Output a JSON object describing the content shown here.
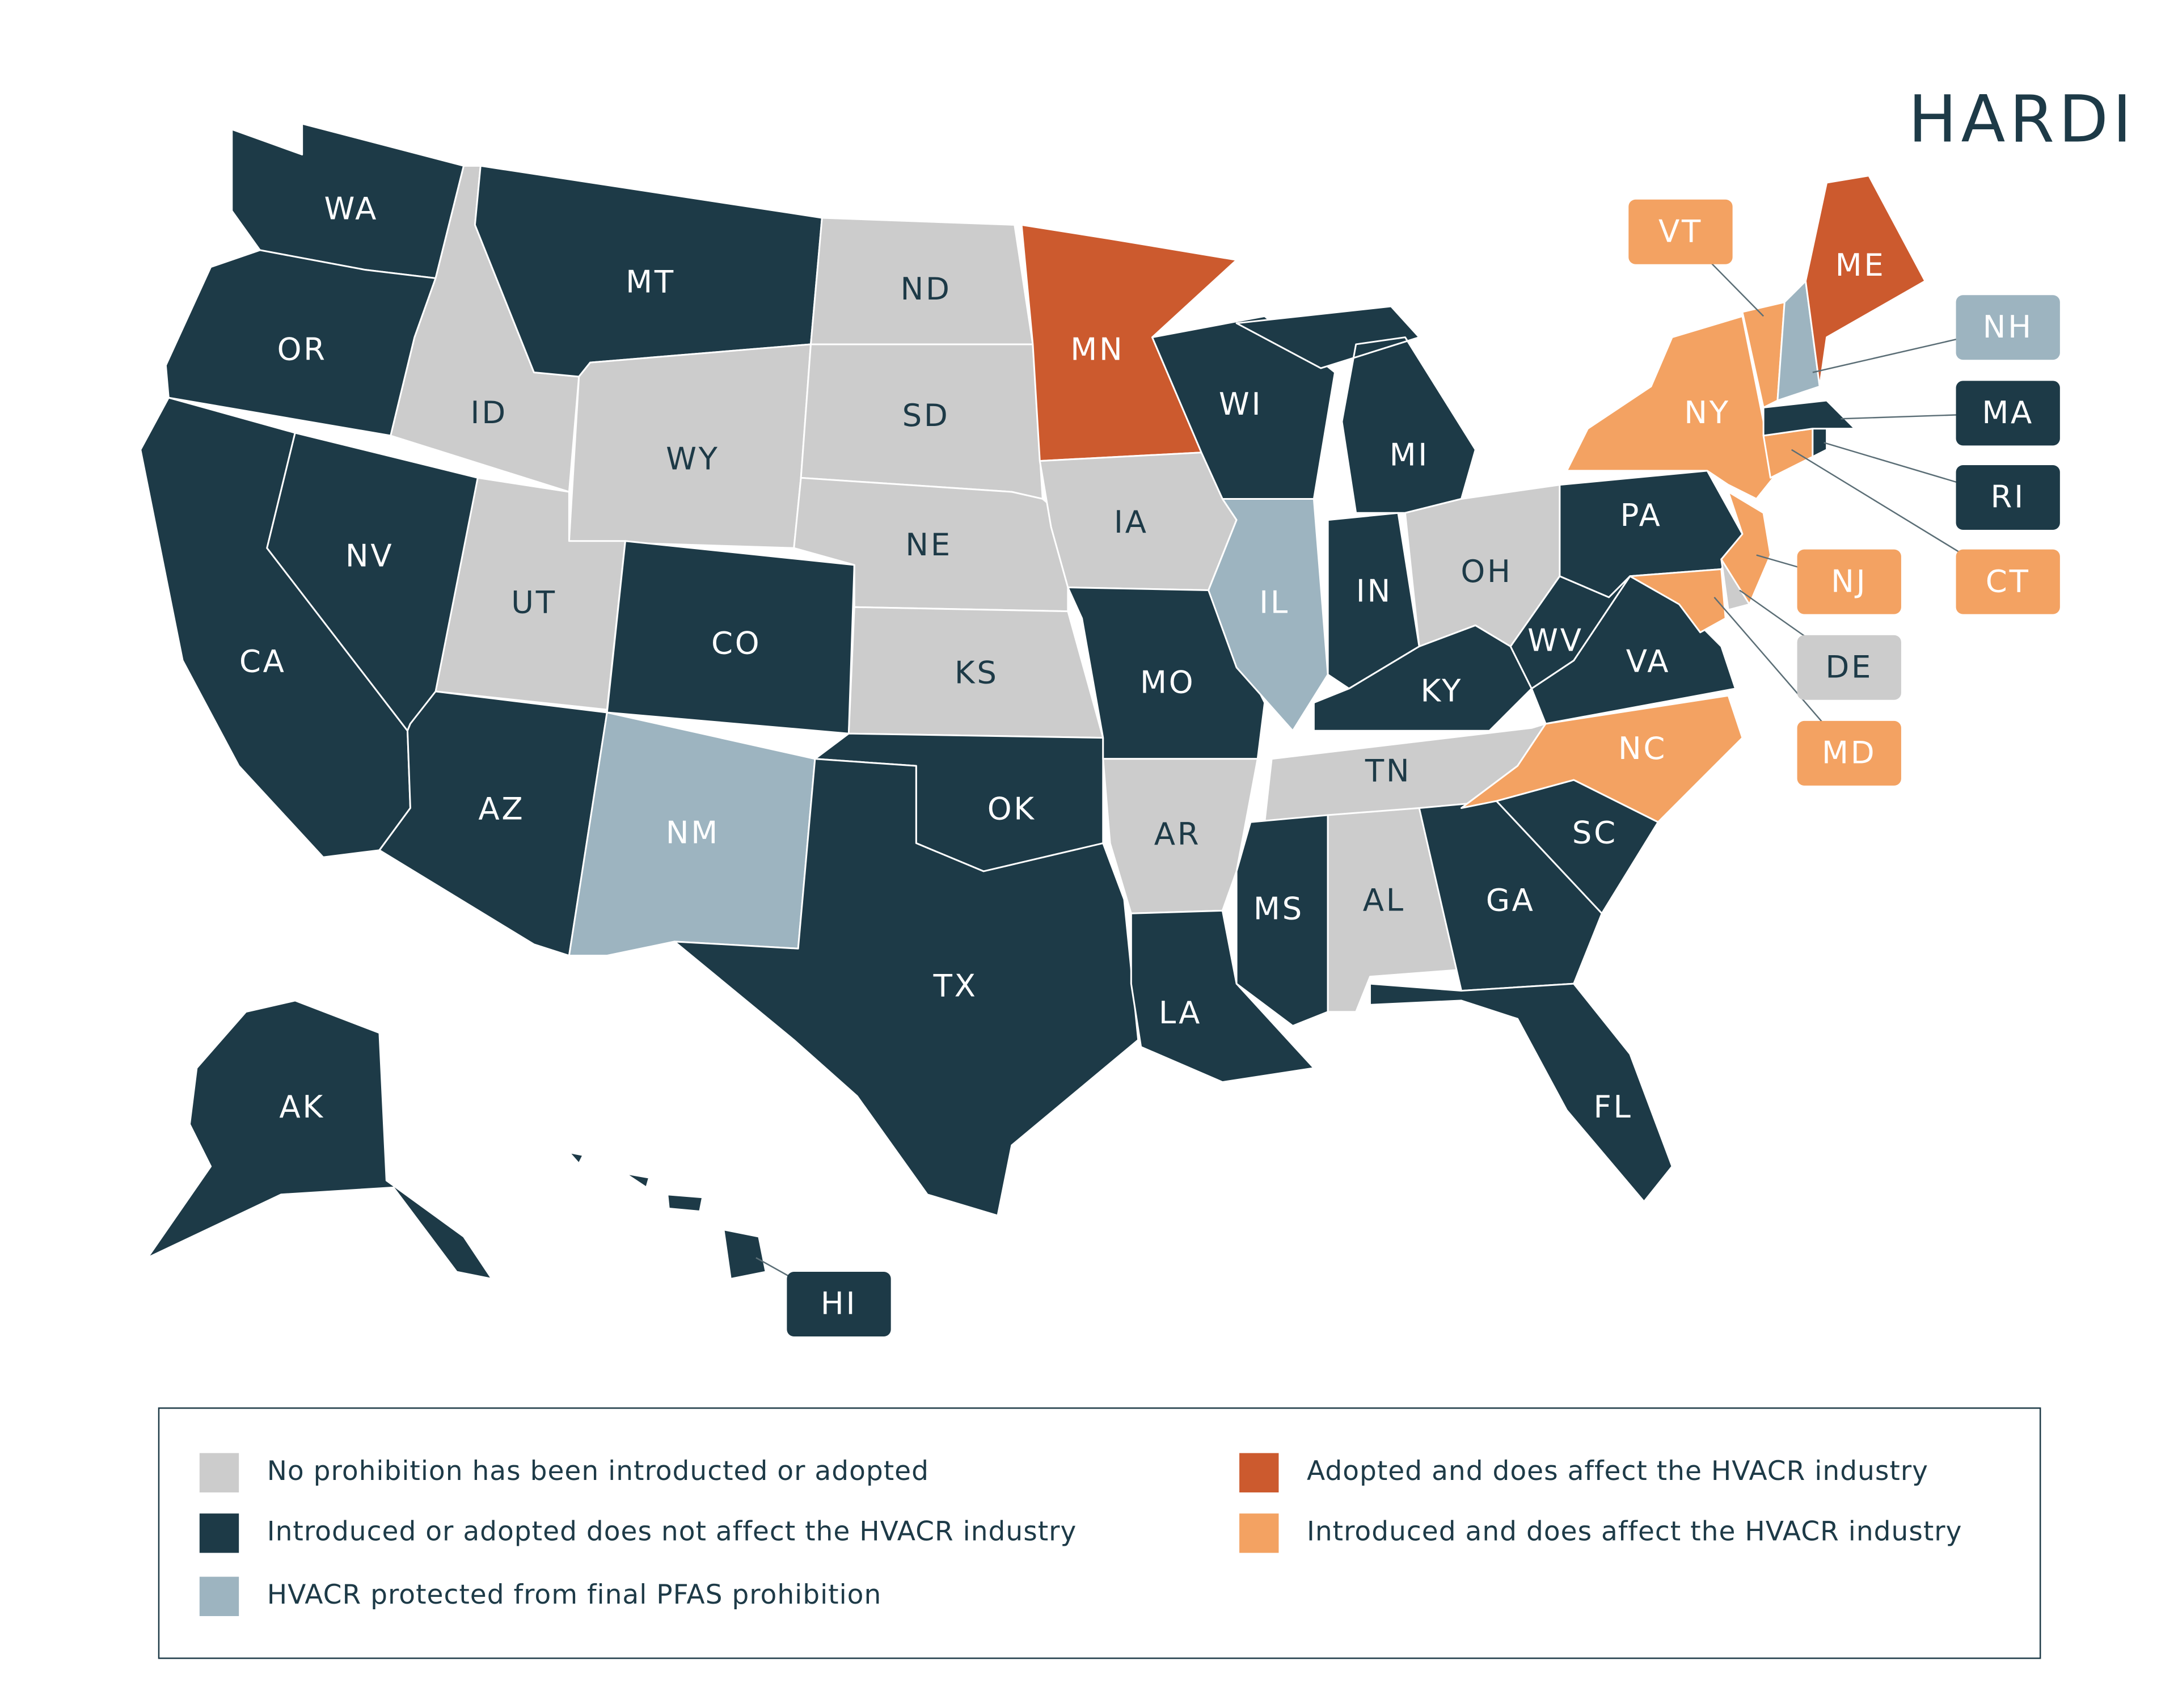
{
  "logo": "HARDI",
  "legend": [
    {
      "label": "No prohibition has been introducted or adopted",
      "color": "#cccccc"
    },
    {
      "label": "Introduced or adopted does not affect the HVACR industry",
      "color": "#1d3a47"
    },
    {
      "label": "HVACR protected from final PFAS prohibition",
      "color": "#9db4c0"
    },
    {
      "label": "Adopted and does affect the HVACR industry",
      "color": "#cc5a2e"
    },
    {
      "label": "Introduced and does affect the HVACR industry",
      "color": "#f3a262"
    }
  ],
  "states": [
    {
      "abbr": "WA",
      "status": 1
    },
    {
      "abbr": "OR",
      "status": 1
    },
    {
      "abbr": "CA",
      "status": 1
    },
    {
      "abbr": "NV",
      "status": 1
    },
    {
      "abbr": "ID",
      "status": 0
    },
    {
      "abbr": "MT",
      "status": 1
    },
    {
      "abbr": "WY",
      "status": 0
    },
    {
      "abbr": "UT",
      "status": 0
    },
    {
      "abbr": "CO",
      "status": 1
    },
    {
      "abbr": "AZ",
      "status": 1
    },
    {
      "abbr": "NM",
      "status": 2
    },
    {
      "abbr": "ND",
      "status": 0
    },
    {
      "abbr": "SD",
      "status": 0
    },
    {
      "abbr": "NE",
      "status": 0
    },
    {
      "abbr": "KS",
      "status": 0
    },
    {
      "abbr": "OK",
      "status": 1
    },
    {
      "abbr": "TX",
      "status": 1
    },
    {
      "abbr": "MN",
      "status": 3
    },
    {
      "abbr": "IA",
      "status": 0
    },
    {
      "abbr": "MO",
      "status": 1
    },
    {
      "abbr": "AR",
      "status": 0
    },
    {
      "abbr": "LA",
      "status": 1
    },
    {
      "abbr": "WI",
      "status": 1
    },
    {
      "abbr": "IL",
      "status": 2
    },
    {
      "abbr": "MI",
      "status": 1
    },
    {
      "abbr": "IN",
      "status": 1
    },
    {
      "abbr": "OH",
      "status": 0
    },
    {
      "abbr": "KY",
      "status": 1
    },
    {
      "abbr": "TN",
      "status": 0
    },
    {
      "abbr": "MS",
      "status": 1
    },
    {
      "abbr": "AL",
      "status": 0
    },
    {
      "abbr": "GA",
      "status": 1
    },
    {
      "abbr": "FL",
      "status": 1
    },
    {
      "abbr": "SC",
      "status": 1
    },
    {
      "abbr": "NC",
      "status": 4
    },
    {
      "abbr": "VA",
      "status": 1
    },
    {
      "abbr": "WV",
      "status": 1
    },
    {
      "abbr": "PA",
      "status": 1
    },
    {
      "abbr": "MD",
      "status": 4
    },
    {
      "abbr": "DE",
      "status": 0
    },
    {
      "abbr": "NJ",
      "status": 4
    },
    {
      "abbr": "NY",
      "status": 4
    },
    {
      "abbr": "CT",
      "status": 4
    },
    {
      "abbr": "RI",
      "status": 1
    },
    {
      "abbr": "MA",
      "status": 1
    },
    {
      "abbr": "VT",
      "status": 4
    },
    {
      "abbr": "NH",
      "status": 2
    },
    {
      "abbr": "ME",
      "status": 3
    },
    {
      "abbr": "AK",
      "status": 1
    },
    {
      "abbr": "HI",
      "status": 1
    }
  ]
}
